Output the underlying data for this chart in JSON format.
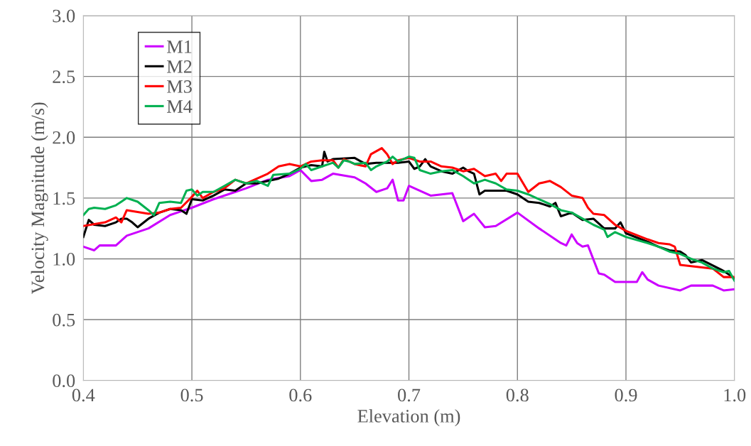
{
  "chart_data": {
    "type": "line",
    "xlabel": "Elevation (m)",
    "ylabel": "Velocity Magnitude (m/s)",
    "xlim": [
      0.4,
      1.0
    ],
    "xticks": [
      {
        "value": 0.4,
        "label": "0.4"
      },
      {
        "value": 0.5,
        "label": "0.5"
      },
      {
        "value": 0.6,
        "label": "0.6"
      },
      {
        "value": 0.7,
        "label": "0.7"
      },
      {
        "value": 0.8,
        "label": "0.8"
      },
      {
        "value": 0.9,
        "label": "0.9"
      },
      {
        "value": 1.0,
        "label": "1.0"
      }
    ],
    "ylim": [
      0,
      3.0
    ],
    "yticks": [
      {
        "value": 0,
        "label": "0.0"
      },
      {
        "value": 0.5,
        "label": "0.5"
      },
      {
        "value": 1.0,
        "label": "1.0"
      },
      {
        "value": 1.5,
        "label": "1.5"
      },
      {
        "value": 2.0,
        "label": "2.0"
      },
      {
        "value": 2.5,
        "label": "2.5"
      },
      {
        "value": 3.0,
        "label": "3.0"
      }
    ],
    "grid": true,
    "legend": "top left",
    "marker": "none",
    "line_style": "solid",
    "series": [
      {
        "name": "M1",
        "color": "#cc00ff",
        "x": [
          0.4,
          0.41,
          0.415,
          0.43,
          0.44,
          0.46,
          0.48,
          0.5,
          0.52,
          0.54,
          0.55,
          0.57,
          0.59,
          0.6,
          0.61,
          0.62,
          0.63,
          0.65,
          0.66,
          0.67,
          0.68,
          0.685,
          0.69,
          0.695,
          0.7,
          0.72,
          0.74,
          0.75,
          0.76,
          0.77,
          0.78,
          0.8,
          0.82,
          0.84,
          0.845,
          0.85,
          0.855,
          0.86,
          0.865,
          0.875,
          0.88,
          0.89,
          0.91,
          0.915,
          0.92,
          0.93,
          0.95,
          0.96,
          0.98,
          0.99,
          1.0
        ],
        "values": [
          1.1,
          1.07,
          1.11,
          1.11,
          1.19,
          1.25,
          1.36,
          1.42,
          1.49,
          1.55,
          1.58,
          1.65,
          1.68,
          1.73,
          1.64,
          1.65,
          1.7,
          1.67,
          1.62,
          1.55,
          1.58,
          1.65,
          1.48,
          1.48,
          1.6,
          1.52,
          1.54,
          1.31,
          1.37,
          1.26,
          1.27,
          1.38,
          1.25,
          1.13,
          1.11,
          1.2,
          1.13,
          1.1,
          1.11,
          0.88,
          0.87,
          0.81,
          0.81,
          0.89,
          0.83,
          0.78,
          0.74,
          0.78,
          0.78,
          0.74,
          0.75
        ]
      },
      {
        "name": "M2",
        "color": "#000000",
        "x": [
          0.4,
          0.405,
          0.41,
          0.42,
          0.43,
          0.435,
          0.44,
          0.445,
          0.45,
          0.46,
          0.47,
          0.48,
          0.49,
          0.495,
          0.5,
          0.51,
          0.52,
          0.53,
          0.54,
          0.55,
          0.56,
          0.57,
          0.58,
          0.59,
          0.6,
          0.61,
          0.62,
          0.622,
          0.625,
          0.63,
          0.65,
          0.66,
          0.67,
          0.69,
          0.7,
          0.705,
          0.71,
          0.715,
          0.72,
          0.73,
          0.74,
          0.75,
          0.755,
          0.76,
          0.765,
          0.77,
          0.79,
          0.8,
          0.81,
          0.82,
          0.83,
          0.835,
          0.84,
          0.85,
          0.86,
          0.87,
          0.88,
          0.89,
          0.895,
          0.9,
          0.92,
          0.93,
          0.94,
          0.95,
          0.955,
          0.96,
          0.97,
          0.99,
          1.0
        ],
        "values": [
          1.18,
          1.32,
          1.28,
          1.27,
          1.3,
          1.33,
          1.33,
          1.3,
          1.26,
          1.33,
          1.38,
          1.41,
          1.4,
          1.37,
          1.49,
          1.48,
          1.52,
          1.57,
          1.56,
          1.62,
          1.62,
          1.64,
          1.66,
          1.7,
          1.75,
          1.77,
          1.76,
          1.88,
          1.8,
          1.82,
          1.83,
          1.78,
          1.79,
          1.79,
          1.8,
          1.74,
          1.76,
          1.82,
          1.76,
          1.72,
          1.7,
          1.75,
          1.72,
          1.7,
          1.53,
          1.56,
          1.56,
          1.53,
          1.47,
          1.46,
          1.43,
          1.46,
          1.35,
          1.38,
          1.32,
          1.33,
          1.25,
          1.25,
          1.3,
          1.21,
          1.14,
          1.1,
          1.07,
          1.06,
          1.03,
          0.97,
          0.99,
          0.9,
          0.84
        ]
      },
      {
        "name": "M3",
        "color": "#ff0000",
        "x": [
          0.4,
          0.42,
          0.43,
          0.435,
          0.44,
          0.46,
          0.47,
          0.48,
          0.49,
          0.5,
          0.505,
          0.51,
          0.52,
          0.53,
          0.54,
          0.55,
          0.57,
          0.58,
          0.59,
          0.6,
          0.61,
          0.62,
          0.63,
          0.635,
          0.64,
          0.65,
          0.66,
          0.665,
          0.675,
          0.68,
          0.685,
          0.69,
          0.7,
          0.71,
          0.72,
          0.73,
          0.74,
          0.75,
          0.76,
          0.77,
          0.78,
          0.785,
          0.79,
          0.8,
          0.81,
          0.82,
          0.83,
          0.84,
          0.85,
          0.86,
          0.865,
          0.87,
          0.88,
          0.89,
          0.9,
          0.92,
          0.93,
          0.94,
          0.945,
          0.95,
          0.96,
          0.98,
          0.99,
          1.0
        ],
        "values": [
          1.27,
          1.3,
          1.34,
          1.3,
          1.4,
          1.37,
          1.38,
          1.41,
          1.42,
          1.51,
          1.56,
          1.5,
          1.55,
          1.58,
          1.65,
          1.62,
          1.7,
          1.76,
          1.78,
          1.76,
          1.8,
          1.81,
          1.81,
          1.75,
          1.82,
          1.78,
          1.76,
          1.86,
          1.91,
          1.86,
          1.78,
          1.81,
          1.83,
          1.8,
          1.8,
          1.76,
          1.75,
          1.72,
          1.74,
          1.68,
          1.7,
          1.64,
          1.7,
          1.7,
          1.55,
          1.62,
          1.64,
          1.59,
          1.52,
          1.5,
          1.42,
          1.37,
          1.36,
          1.28,
          1.23,
          1.16,
          1.13,
          1.12,
          1.1,
          0.95,
          0.94,
          0.92,
          0.85,
          0.85
        ]
      },
      {
        "name": "M4",
        "color": "#00b050",
        "x": [
          0.4,
          0.405,
          0.41,
          0.42,
          0.43,
          0.435,
          0.44,
          0.45,
          0.46,
          0.465,
          0.47,
          0.48,
          0.49,
          0.495,
          0.5,
          0.505,
          0.51,
          0.52,
          0.53,
          0.54,
          0.55,
          0.56,
          0.57,
          0.575,
          0.59,
          0.6,
          0.605,
          0.61,
          0.62,
          0.63,
          0.635,
          0.64,
          0.645,
          0.65,
          0.66,
          0.665,
          0.67,
          0.68,
          0.685,
          0.69,
          0.7,
          0.705,
          0.71,
          0.72,
          0.73,
          0.74,
          0.75,
          0.76,
          0.77,
          0.78,
          0.79,
          0.8,
          0.81,
          0.82,
          0.83,
          0.84,
          0.85,
          0.86,
          0.87,
          0.88,
          0.883,
          0.89,
          0.9,
          0.92,
          0.93,
          0.94,
          0.95,
          0.96,
          0.97,
          0.98,
          0.99,
          0.995,
          1.0
        ],
        "values": [
          1.36,
          1.41,
          1.42,
          1.41,
          1.44,
          1.47,
          1.5,
          1.47,
          1.4,
          1.36,
          1.46,
          1.47,
          1.46,
          1.56,
          1.57,
          1.52,
          1.55,
          1.55,
          1.6,
          1.65,
          1.62,
          1.64,
          1.6,
          1.69,
          1.7,
          1.74,
          1.78,
          1.73,
          1.76,
          1.79,
          1.75,
          1.81,
          1.8,
          1.78,
          1.79,
          1.73,
          1.76,
          1.8,
          1.84,
          1.8,
          1.84,
          1.83,
          1.73,
          1.7,
          1.72,
          1.73,
          1.68,
          1.62,
          1.65,
          1.62,
          1.57,
          1.56,
          1.53,
          1.49,
          1.45,
          1.4,
          1.38,
          1.33,
          1.28,
          1.24,
          1.18,
          1.22,
          1.18,
          1.13,
          1.1,
          1.06,
          1.04,
          1.0,
          0.97,
          0.92,
          0.89,
          0.9,
          0.82
        ]
      }
    ]
  }
}
